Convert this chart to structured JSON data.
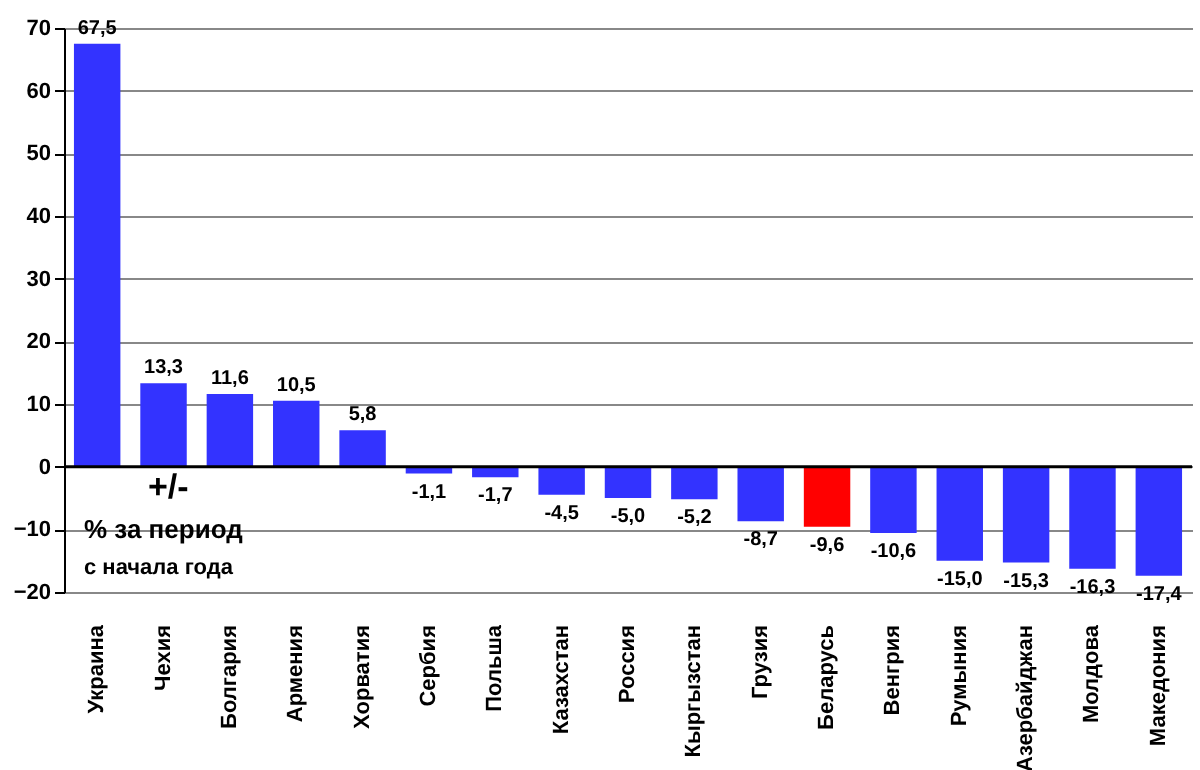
{
  "chart_data": {
    "type": "bar",
    "categories": [
      "Украина",
      "Чехия",
      "Болгария",
      "Армения",
      "Хорватия",
      "Сербия",
      "Польша",
      "Казахстан",
      "Россия",
      "Кыргызстан",
      "Грузия",
      "Беларусь",
      "Венгрия",
      "Румыния",
      "Азербайджан",
      "Молдова",
      "Македония"
    ],
    "values": [
      67.5,
      13.3,
      11.6,
      10.5,
      5.8,
      -1.1,
      -1.7,
      -4.5,
      -5.0,
      -5.2,
      -8.7,
      -9.6,
      -10.6,
      -15.0,
      -15.3,
      -16.3,
      -17.4
    ],
    "value_labels": [
      "67,5",
      "13,3",
      "11,6",
      "10,5",
      "5,8",
      "-1,1",
      "-1,7",
      "-4,5",
      "-5,0",
      "-5,2",
      "-8,7",
      "-9,6",
      "-10,6",
      "-15,0",
      "-15,3",
      "-16,3",
      "-17,4"
    ],
    "colors": [
      "#3333ff",
      "#3333ff",
      "#3333ff",
      "#3333ff",
      "#3333ff",
      "#3333ff",
      "#3333ff",
      "#3333ff",
      "#3333ff",
      "#3333ff",
      "#3333ff",
      "#ff0000",
      "#3333ff",
      "#3333ff",
      "#3333ff",
      "#3333ff",
      "#3333ff"
    ],
    "ylim": [
      -20,
      70
    ],
    "yticks": [
      -20,
      -10,
      0,
      10,
      20,
      30,
      40,
      50,
      60,
      70
    ],
    "grid": "y",
    "ref_lines": [
      {
        "axis": "y",
        "value": 0,
        "color": "#000000"
      }
    ],
    "annotations": [
      "+/-",
      "% за период",
      "с начала года"
    ]
  }
}
